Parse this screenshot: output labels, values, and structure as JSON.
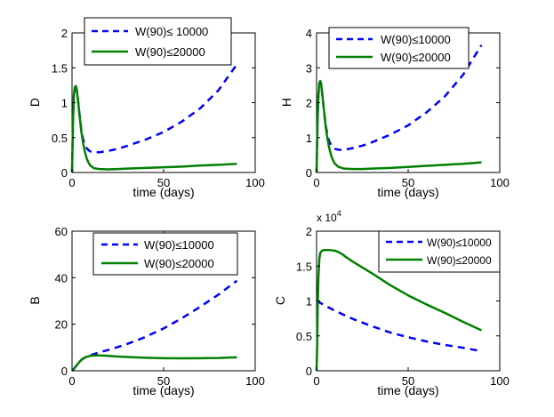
{
  "chart_data": [
    {
      "type": "line",
      "title": "",
      "xlabel": "time (days)",
      "ylabel": "D",
      "xlim": [
        0,
        100
      ],
      "ylim": [
        0,
        2
      ],
      "xticks": [
        0,
        50,
        100
      ],
      "xtick_labels": [
        "0",
        "50",
        "100"
      ],
      "yticks": [
        0,
        0.5,
        1,
        1.5,
        2
      ],
      "ytick_labels": [
        "0",
        "0.5",
        "1",
        "1.5",
        "2"
      ],
      "legend_position": "top-center",
      "series": [
        {
          "name": "W(90)≤ 10000",
          "color": "#0000ff",
          "style": "dashed",
          "x": [
            0,
            0.5,
            1,
            1.5,
            2,
            2.5,
            3,
            4,
            5,
            6,
            7,
            8,
            9,
            10,
            12,
            15,
            20,
            25,
            30,
            40,
            50,
            60,
            70,
            80,
            90
          ],
          "y": [
            0,
            0.7,
            1.1,
            1.22,
            1.24,
            1.2,
            1.1,
            0.85,
            0.62,
            0.48,
            0.4,
            0.35,
            0.32,
            0.3,
            0.29,
            0.29,
            0.31,
            0.34,
            0.38,
            0.47,
            0.58,
            0.73,
            0.92,
            1.18,
            1.55
          ]
        },
        {
          "name": "W(90)≤20000",
          "color": "#008000",
          "style": "solid",
          "x": [
            0,
            0.5,
            1,
            1.5,
            2,
            2.5,
            3,
            4,
            5,
            6,
            7,
            8,
            9,
            10,
            12,
            15,
            20,
            25,
            30,
            40,
            50,
            60,
            70,
            80,
            90
          ],
          "y": [
            0,
            0.7,
            1.1,
            1.22,
            1.24,
            1.2,
            1.1,
            0.85,
            0.6,
            0.43,
            0.3,
            0.2,
            0.14,
            0.1,
            0.06,
            0.05,
            0.045,
            0.05,
            0.055,
            0.065,
            0.075,
            0.085,
            0.1,
            0.11,
            0.125
          ]
        }
      ]
    },
    {
      "type": "line",
      "title": "",
      "xlabel": "time (days)",
      "ylabel": "H",
      "xlim": [
        0,
        100
      ],
      "ylim": [
        0,
        4
      ],
      "xticks": [
        0,
        50,
        100
      ],
      "xtick_labels": [
        "0",
        "50",
        "100"
      ],
      "yticks": [
        0,
        1,
        2,
        3,
        4
      ],
      "ytick_labels": [
        "0",
        "1",
        "2",
        "3",
        "4"
      ],
      "legend_position": "top-center",
      "series": [
        {
          "name": "W(90)≤10000",
          "color": "#0000ff",
          "style": "dashed",
          "x": [
            0,
            0.5,
            1,
            1.5,
            2,
            2.5,
            3,
            4,
            5,
            6,
            7,
            8,
            9,
            10,
            12,
            15,
            20,
            25,
            30,
            40,
            50,
            60,
            70,
            80,
            90
          ],
          "y": [
            0,
            1.4,
            2.2,
            2.55,
            2.62,
            2.55,
            2.3,
            1.8,
            1.35,
            1.05,
            0.88,
            0.78,
            0.72,
            0.68,
            0.65,
            0.65,
            0.7,
            0.77,
            0.86,
            1.08,
            1.35,
            1.72,
            2.18,
            2.8,
            3.65
          ]
        },
        {
          "name": "W(90)≤20000",
          "color": "#008000",
          "style": "solid",
          "x": [
            0,
            0.5,
            1,
            1.5,
            2,
            2.5,
            3,
            4,
            5,
            6,
            7,
            8,
            9,
            10,
            12,
            15,
            20,
            25,
            30,
            40,
            50,
            60,
            70,
            80,
            90
          ],
          "y": [
            0,
            1.4,
            2.2,
            2.55,
            2.62,
            2.55,
            2.3,
            1.8,
            1.3,
            0.95,
            0.68,
            0.48,
            0.35,
            0.25,
            0.16,
            0.11,
            0.1,
            0.1,
            0.11,
            0.13,
            0.16,
            0.19,
            0.22,
            0.25,
            0.29
          ]
        }
      ]
    },
    {
      "type": "line",
      "title": "",
      "xlabel": "time (days)",
      "ylabel": "B",
      "xlim": [
        0,
        100
      ],
      "ylim": [
        0,
        60
      ],
      "xticks": [
        0,
        50,
        100
      ],
      "xtick_labels": [
        "0",
        "50",
        "100"
      ],
      "yticks": [
        0,
        20,
        40,
        60
      ],
      "ytick_labels": [
        "0",
        "20",
        "40",
        "60"
      ],
      "legend_position": "top-right",
      "series": [
        {
          "name": "W(90)≤10000",
          "color": "#0000ff",
          "style": "dashed",
          "x": [
            0,
            1,
            2,
            3,
            4,
            5,
            6,
            8,
            10,
            12,
            15,
            20,
            25,
            30,
            40,
            50,
            60,
            70,
            80,
            90
          ],
          "y": [
            0,
            0.8,
            1.8,
            2.8,
            3.8,
            4.6,
            5.2,
            6.0,
            6.6,
            7.2,
            7.9,
            9.0,
            10.2,
            11.5,
            14.5,
            18.2,
            22.6,
            27.5,
            32.8,
            38.7
          ]
        },
        {
          "name": "W(90)≤20000",
          "color": "#008000",
          "style": "solid",
          "x": [
            0,
            1,
            2,
            3,
            4,
            5,
            6,
            8,
            10,
            12,
            15,
            20,
            25,
            30,
            40,
            50,
            60,
            70,
            80,
            90
          ],
          "y": [
            0,
            0.8,
            1.8,
            2.8,
            3.8,
            4.6,
            5.2,
            6.0,
            6.4,
            6.6,
            6.6,
            6.4,
            6.1,
            5.9,
            5.6,
            5.4,
            5.35,
            5.4,
            5.5,
            5.8
          ]
        }
      ]
    },
    {
      "type": "line",
      "title": "",
      "xlabel": "time (days)",
      "ylabel": "C",
      "y_scale_label": "x 10",
      "y_scale_exponent": "4",
      "xlim": [
        0,
        100
      ],
      "ylim": [
        0,
        2
      ],
      "xticks": [
        0,
        50,
        100
      ],
      "xtick_labels": [
        "0",
        "50",
        "100"
      ],
      "yticks": [
        0,
        0.5,
        1,
        1.5,
        2
      ],
      "ytick_labels": [
        "0",
        "0.5",
        "1",
        "1.5",
        "2"
      ],
      "legend_position": "top-right",
      "series": [
        {
          "name": "W(90)≤10000",
          "color": "#0000ff",
          "style": "dashed",
          "x": [
            0,
            5,
            10,
            15,
            20,
            30,
            40,
            50,
            60,
            70,
            80,
            90
          ],
          "y": [
            1.0,
            0.93,
            0.86,
            0.8,
            0.74,
            0.64,
            0.55,
            0.48,
            0.42,
            0.37,
            0.33,
            0.28
          ]
        },
        {
          "name": "W(90)≤20000",
          "color": "#008000",
          "style": "solid",
          "x": [
            0,
            0.3,
            0.6,
            1,
            1.5,
            2,
            3,
            4,
            5,
            7,
            10,
            12,
            14,
            16,
            20,
            25,
            30,
            40,
            50,
            60,
            70,
            80,
            90
          ],
          "y": [
            0,
            0.35,
            0.9,
            1.35,
            1.6,
            1.69,
            1.72,
            1.73,
            1.73,
            1.73,
            1.72,
            1.7,
            1.67,
            1.63,
            1.56,
            1.48,
            1.4,
            1.23,
            1.08,
            0.95,
            0.83,
            0.7,
            0.58
          ]
        }
      ]
    }
  ]
}
